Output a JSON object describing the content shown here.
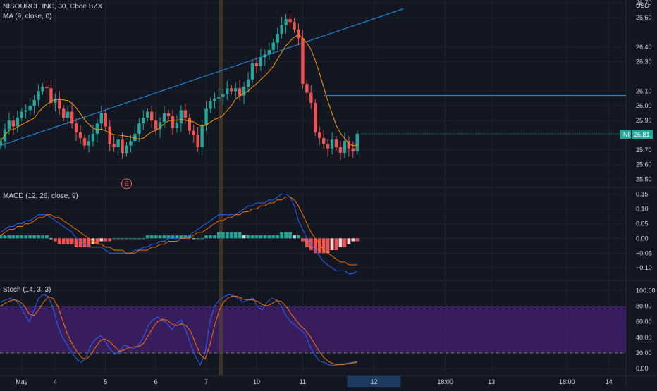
{
  "header": {
    "symbol_line": "NISOURCE INC, 30, Cboe BZX",
    "ma_label": "MA (9, close, 0)",
    "currency": "USD"
  },
  "macd_pane": {
    "label": "MACD (12, 26, close, 9)"
  },
  "stoch_pane": {
    "label": "Stoch (14, 3, 3)"
  },
  "price_tag": {
    "ticker": "NI",
    "value": "25.81"
  },
  "earnings_marker": "E",
  "colors": {
    "background": "#131722",
    "up": "#26a69a",
    "down": "#ef5350",
    "trendline": "#2196f3",
    "ma": "#ff9800",
    "macd_line": "#2962ff",
    "signal_line": "#ff6d00",
    "stoch_k": "#2962ff",
    "stoch_d": "#ff6d00",
    "stoch_band": "#3f1f66",
    "price_tag": "#26a69a"
  },
  "chart_data": {
    "type": "candlestick",
    "price_axis": {
      "ticks": [
        "26.70",
        "26.60",
        "26.40",
        "26.30",
        "26.10",
        "26.00",
        "25.90",
        "25.70",
        "25.60",
        "25.50"
      ],
      "range": [
        25.45,
        26.72
      ]
    },
    "macd_axis": {
      "ticks": [
        "0.15",
        "0.10",
        "0.05",
        "0.00",
        "−0.05",
        "−0.10"
      ],
      "range": [
        -0.14,
        0.17
      ]
    },
    "stoch_axis": {
      "ticks": [
        "100.00",
        "80.00",
        "60.00",
        "40.00",
        "20.00",
        "0.00"
      ],
      "range": [
        -8,
        112
      ],
      "band": [
        20,
        80
      ]
    },
    "x_labels": [
      {
        "label": "May",
        "bar": 5
      },
      {
        "label": "4",
        "bar": 13
      },
      {
        "label": "5",
        "bar": 25
      },
      {
        "label": "6",
        "bar": 37
      },
      {
        "label": "7",
        "bar": 49
      },
      {
        "label": "10",
        "bar": 61
      },
      {
        "label": "11",
        "bar": 72
      },
      {
        "label": "12",
        "bar": 89
      },
      {
        "label": "18:00",
        "bar": 106
      },
      {
        "label": "13",
        "bar": 117
      },
      {
        "label": "18:00",
        "bar": 135
      },
      {
        "label": "14",
        "bar": 145
      }
    ],
    "highlight_label": "12",
    "closes": [
      25.76,
      25.84,
      25.9,
      25.86,
      25.92,
      25.96,
      25.97,
      26.0,
      26.04,
      26.1,
      26.13,
      26.12,
      26.02,
      26.05,
      25.98,
      25.92,
      25.96,
      25.88,
      25.82,
      25.78,
      25.73,
      25.76,
      25.81,
      25.88,
      25.95,
      25.86,
      25.74,
      25.72,
      25.77,
      25.68,
      25.73,
      25.76,
      25.81,
      25.88,
      25.92,
      25.96,
      25.9,
      25.84,
      25.89,
      25.95,
      25.93,
      25.85,
      25.88,
      25.97,
      25.92,
      25.83,
      25.8,
      25.72,
      25.87,
      25.98,
      26.03,
      26.05,
      26.06,
      26.08,
      26.12,
      26.1,
      26.12,
      26.07,
      26.13,
      26.18,
      26.29,
      26.27,
      26.33,
      26.35,
      26.38,
      26.43,
      26.49,
      26.55,
      26.59,
      26.57,
      26.52,
      26.46,
      26.15,
      26.09,
      26.02,
      25.82,
      25.78,
      25.74,
      25.71,
      25.77,
      25.72,
      25.68,
      25.76,
      25.71,
      25.69,
      25.81
    ],
    "markers": [
      {
        "label": "E",
        "bar": 30
      }
    ],
    "trendline": {
      "from": {
        "bar": 0,
        "price": 25.73
      },
      "to": {
        "bar": 96,
        "price": 26.66
      }
    },
    "resistance_level": {
      "from_bar": 77,
      "price": 26.07
    },
    "last_price": 25.81,
    "macd_hist": [
      0.01,
      0.01,
      0.01,
      0.01,
      0.01,
      0.01,
      0.01,
      0.01,
      0.01,
      0.01,
      0.01,
      0.01,
      0.0,
      -0.01,
      -0.02,
      -0.02,
      -0.02,
      -0.02,
      -0.03,
      -0.03,
      -0.03,
      -0.03,
      -0.02,
      -0.02,
      -0.01,
      -0.01,
      -0.01,
      0.0,
      0.0,
      0.0,
      0.0,
      0.0,
      0.0,
      0.0,
      0.0,
      0.01,
      0.01,
      0.01,
      0.01,
      0.01,
      0.01,
      0.01,
      0.01,
      0.01,
      0.01,
      0.01,
      0.0,
      0.0,
      0.0,
      0.01,
      0.01,
      0.01,
      0.02,
      0.02,
      0.02,
      0.02,
      0.02,
      0.02,
      0.01,
      0.01,
      0.01,
      0.01,
      0.01,
      0.01,
      0.01,
      0.01,
      0.01,
      0.02,
      0.02,
      0.02,
      0.01,
      0.01,
      -0.01,
      -0.03,
      -0.04,
      -0.05,
      -0.05,
      -0.05,
      -0.05,
      -0.04,
      -0.04,
      -0.03,
      -0.03,
      -0.02,
      -0.01,
      -0.01
    ],
    "macd_line": [
      0.02,
      0.03,
      0.04,
      0.04,
      0.05,
      0.05,
      0.06,
      0.06,
      0.07,
      0.08,
      0.08,
      0.08,
      0.07,
      0.06,
      0.05,
      0.04,
      0.03,
      0.02,
      0.0,
      -0.01,
      -0.02,
      -0.03,
      -0.03,
      -0.03,
      -0.03,
      -0.04,
      -0.05,
      -0.05,
      -0.05,
      -0.05,
      -0.05,
      -0.05,
      -0.04,
      -0.04,
      -0.03,
      -0.03,
      -0.02,
      -0.02,
      -0.01,
      -0.01,
      0.0,
      0.0,
      0.0,
      0.0,
      0.0,
      0.01,
      0.02,
      0.03,
      0.04,
      0.05,
      0.06,
      0.07,
      0.08,
      0.08,
      0.08,
      0.08,
      0.08,
      0.09,
      0.1,
      0.11,
      0.11,
      0.12,
      0.12,
      0.12,
      0.13,
      0.13,
      0.14,
      0.15,
      0.15,
      0.14,
      0.11,
      0.06,
      0.03,
      0.0,
      -0.02,
      -0.04,
      -0.06,
      -0.08,
      -0.09,
      -0.1,
      -0.11,
      -0.11,
      -0.11,
      -0.12,
      -0.12,
      -0.11
    ],
    "signal_line": [
      0.01,
      0.02,
      0.03,
      0.03,
      0.04,
      0.04,
      0.05,
      0.05,
      0.06,
      0.07,
      0.07,
      0.08,
      0.08,
      0.07,
      0.07,
      0.06,
      0.05,
      0.04,
      0.03,
      0.02,
      0.01,
      0.0,
      -0.01,
      -0.02,
      -0.02,
      -0.03,
      -0.03,
      -0.04,
      -0.04,
      -0.04,
      -0.05,
      -0.05,
      -0.05,
      -0.04,
      -0.04,
      -0.04,
      -0.03,
      -0.03,
      -0.02,
      -0.02,
      -0.01,
      -0.01,
      -0.01,
      0.0,
      0.0,
      0.0,
      0.01,
      0.02,
      0.02,
      0.03,
      0.04,
      0.05,
      0.06,
      0.06,
      0.07,
      0.07,
      0.08,
      0.08,
      0.09,
      0.09,
      0.1,
      0.1,
      0.11,
      0.11,
      0.12,
      0.12,
      0.13,
      0.13,
      0.14,
      0.14,
      0.13,
      0.11,
      0.08,
      0.05,
      0.02,
      0.0,
      -0.02,
      -0.04,
      -0.05,
      -0.06,
      -0.07,
      -0.08,
      -0.08,
      -0.09,
      -0.09,
      -0.09
    ],
    "stoch_k": [
      85,
      88,
      90,
      88,
      82,
      70,
      60,
      75,
      90,
      95,
      92,
      78,
      55,
      40,
      30,
      20,
      12,
      8,
      15,
      30,
      38,
      42,
      35,
      25,
      18,
      22,
      30,
      28,
      25,
      30,
      40,
      55,
      62,
      66,
      62,
      58,
      50,
      58,
      62,
      48,
      30,
      15,
      5,
      20,
      60,
      80,
      88,
      92,
      95,
      93,
      90,
      85,
      88,
      90,
      80,
      75,
      85,
      90,
      88,
      80,
      68,
      60,
      55,
      50,
      45,
      30,
      18,
      10,
      8,
      5,
      4,
      5,
      6,
      7,
      8,
      9
    ],
    "stoch_d": [
      80,
      84,
      87,
      88,
      86,
      80,
      70,
      68,
      75,
      85,
      92,
      90,
      80,
      62,
      45,
      32,
      22,
      14,
      12,
      18,
      28,
      36,
      38,
      34,
      28,
      22,
      24,
      27,
      28,
      28,
      32,
      42,
      52,
      60,
      63,
      62,
      57,
      55,
      57,
      55,
      47,
      32,
      18,
      12,
      30,
      55,
      75,
      86,
      91,
      93,
      92,
      89,
      88,
      88,
      86,
      82,
      80,
      83,
      87,
      86,
      80,
      71,
      63,
      55,
      50,
      42,
      32,
      22,
      14,
      9,
      6,
      5,
      5,
      6,
      7,
      8
    ]
  }
}
